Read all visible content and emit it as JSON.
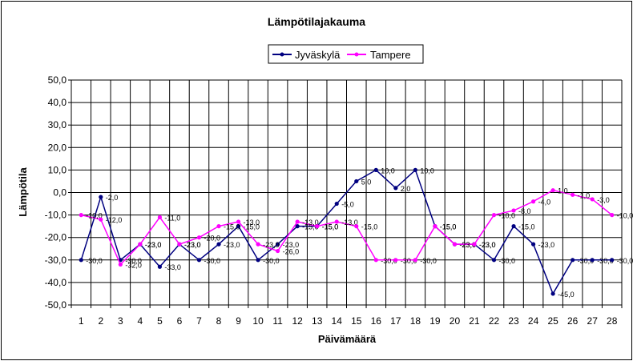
{
  "chart_data": {
    "type": "line",
    "title": "Lämpötilajakauma",
    "xlabel": "Päivämäärä",
    "ylabel": "Lämpötila",
    "ylim": [
      -50,
      50
    ],
    "y_ticks": [
      "50,0",
      "40,0",
      "30,0",
      "20,0",
      "10,0",
      "0,0",
      "-10,0",
      "-20,0",
      "-30,0",
      "-40,0",
      "-50,0"
    ],
    "grid": true,
    "legend_position": "top",
    "x": [
      1,
      2,
      3,
      4,
      5,
      6,
      7,
      8,
      9,
      10,
      11,
      12,
      13,
      14,
      15,
      16,
      17,
      18,
      19,
      20,
      21,
      22,
      23,
      24,
      25,
      26,
      27,
      28
    ],
    "series": [
      {
        "name": "Jyväskylä",
        "color": "#000080",
        "values": [
          -30,
          -2,
          -30,
          -23,
          -33,
          -23,
          -30,
          -23,
          -15,
          -30,
          -23,
          -15,
          -15,
          -5,
          5,
          10,
          2,
          10,
          -15,
          -23,
          -23,
          -30,
          -15,
          -23,
          -45,
          -30,
          -30,
          -30
        ],
        "labels": [
          "-30,0",
          "-2,0",
          "-30,0",
          "-23,0",
          "-33,0",
          "-23,0",
          "-30,0",
          "-23,0",
          "-15,0",
          "-30,0",
          "-23,0",
          "-15,0",
          "-15,0",
          "-5,0",
          "5,0",
          "10,0",
          "2,0",
          "10,0",
          "-15,0",
          "-23,0",
          "-23,0",
          "-30,0",
          "-15,0",
          "-23,0",
          "-45,0",
          "-30,0",
          "-30,0",
          "-30,0"
        ]
      },
      {
        "name": "Tampere",
        "color": "#ff00ff",
        "values": [
          -10,
          -12,
          -32,
          -23,
          -11,
          -23,
          -20,
          -15,
          -13,
          -23,
          -26,
          -13,
          -15,
          -13,
          -15,
          -30,
          -30,
          -30,
          -15,
          -23,
          -23,
          -10,
          -8,
          -4,
          1,
          -1,
          -3,
          -10
        ],
        "labels": [
          "-10,0",
          "-12,0",
          "-32,0",
          "-23,0",
          "-11,0",
          "-23,0",
          "-20,0",
          "-15,0",
          "-13,0",
          "-23,0",
          "-26,0",
          "-13,0",
          "-15,0",
          "-13,0",
          "-15,0",
          "-30,0",
          "-30,0",
          "-30,0",
          "-15,0",
          "-23,0",
          "-23,0",
          "-10,0",
          "-8,0",
          "-4,0",
          "1,0",
          "-1,0",
          "-3,0",
          "-10,0"
        ]
      }
    ]
  }
}
